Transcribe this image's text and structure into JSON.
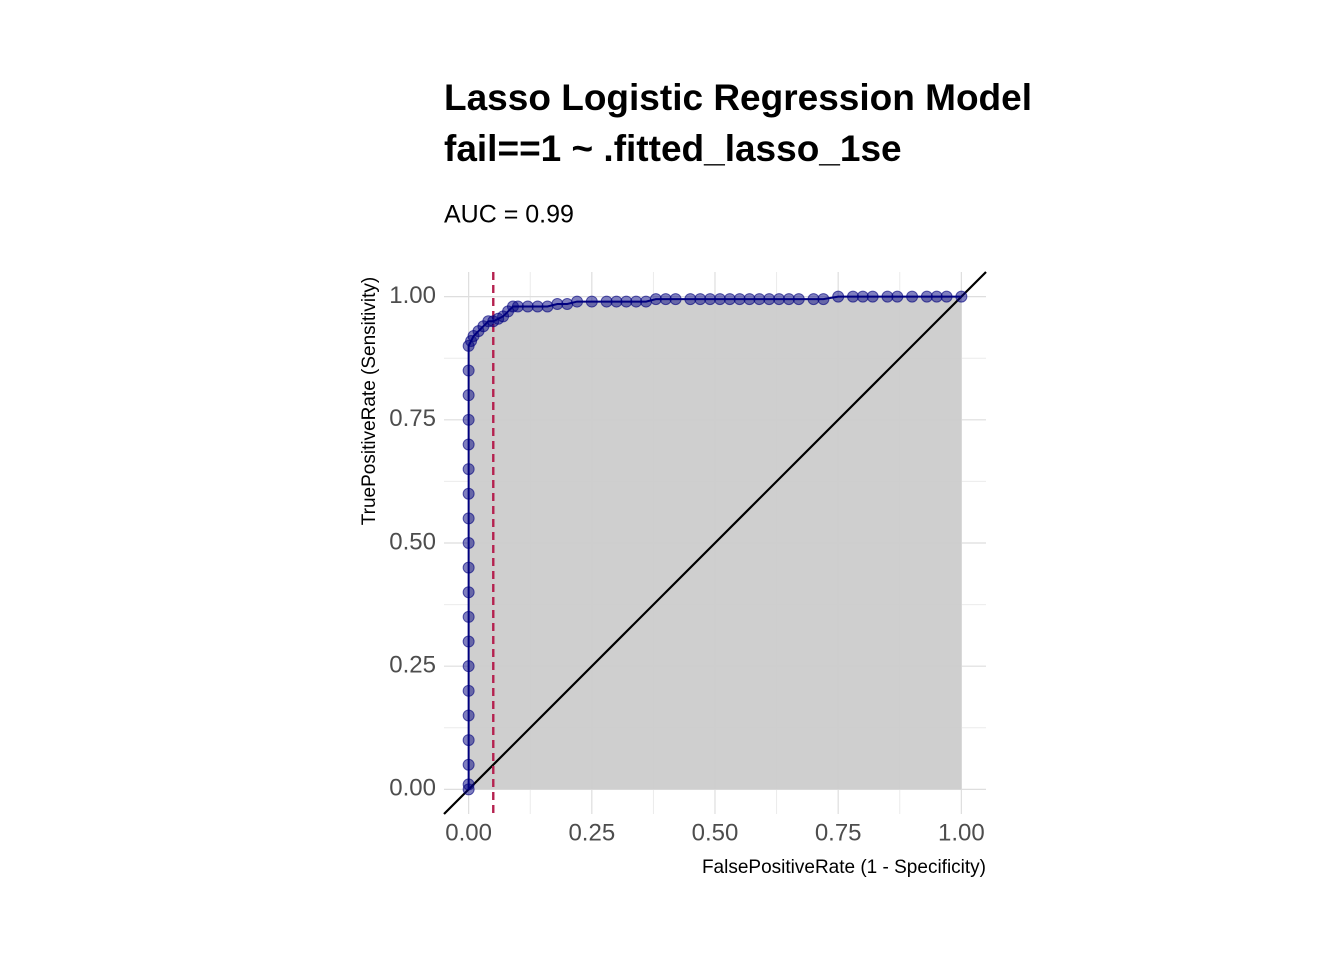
{
  "chart_data": {
    "type": "roc",
    "title": [
      "Lasso Logistic Regression Model",
      "fail==1 ~ .fitted_lasso_1se"
    ],
    "subtitle": "AUC = 0.99",
    "xlabel": "FalsePositiveRate (1 - Specificity)",
    "ylabel": "TruePositiveRate (Sensitivity)",
    "x": [
      0,
      0,
      0,
      0,
      0,
      0,
      0,
      0,
      0,
      0,
      0,
      0,
      0,
      0,
      0,
      0,
      0,
      0,
      0,
      0,
      0.005,
      0.01,
      0.02,
      0.03,
      0.04,
      0.05,
      0.06,
      0.07,
      0.08,
      0.09,
      0.1,
      0.12,
      0.14,
      0.16,
      0.18,
      0.2,
      0.22,
      0.25,
      0.28,
      0.3,
      0.32,
      0.34,
      0.36,
      0.38,
      0.4,
      0.42,
      0.45,
      0.47,
      0.49,
      0.51,
      0.53,
      0.55,
      0.57,
      0.59,
      0.61,
      0.63,
      0.65,
      0.67,
      0.7,
      0.72,
      0.75,
      0.78,
      0.8,
      0.82,
      0.85,
      0.87,
      0.9,
      0.93,
      0.95,
      0.97,
      1.0
    ],
    "series": [
      {
        "name": "ROC",
        "color": "#00007f",
        "values": [
          0,
          0.01,
          0.05,
          0.1,
          0.15,
          0.2,
          0.25,
          0.3,
          0.35,
          0.4,
          0.45,
          0.5,
          0.55,
          0.6,
          0.65,
          0.7,
          0.75,
          0.8,
          0.85,
          0.9,
          0.91,
          0.92,
          0.93,
          0.94,
          0.95,
          0.95,
          0.955,
          0.96,
          0.97,
          0.98,
          0.98,
          0.98,
          0.98,
          0.98,
          0.985,
          0.985,
          0.99,
          0.99,
          0.99,
          0.99,
          0.99,
          0.99,
          0.99,
          0.995,
          0.995,
          0.995,
          0.995,
          0.995,
          0.995,
          0.995,
          0.995,
          0.995,
          0.995,
          0.995,
          0.995,
          0.995,
          0.995,
          0.995,
          0.995,
          0.995,
          1,
          1,
          1,
          1,
          1,
          1,
          1,
          1,
          1,
          1,
          1
        ]
      }
    ],
    "area_color": "#cccccc",
    "diagonal": true,
    "vline": {
      "value": 0.05,
      "color": "#b5214f"
    },
    "xlim": [
      -0.05,
      1.05
    ],
    "ylim": [
      -0.05,
      1.05
    ],
    "xticks": [
      {
        "value": 0,
        "label": "0.00"
      },
      {
        "value": 0.25,
        "label": "0.25"
      },
      {
        "value": 0.5,
        "label": "0.50"
      },
      {
        "value": 0.75,
        "label": "0.75"
      },
      {
        "value": 1,
        "label": "1.00"
      }
    ],
    "yticks": [
      {
        "value": 0,
        "label": "0.00"
      },
      {
        "value": 0.25,
        "label": "0.25"
      },
      {
        "value": 0.5,
        "label": "0.50"
      },
      {
        "value": 0.75,
        "label": "0.75"
      },
      {
        "value": 1,
        "label": "1.00"
      }
    ],
    "grid": true
  }
}
